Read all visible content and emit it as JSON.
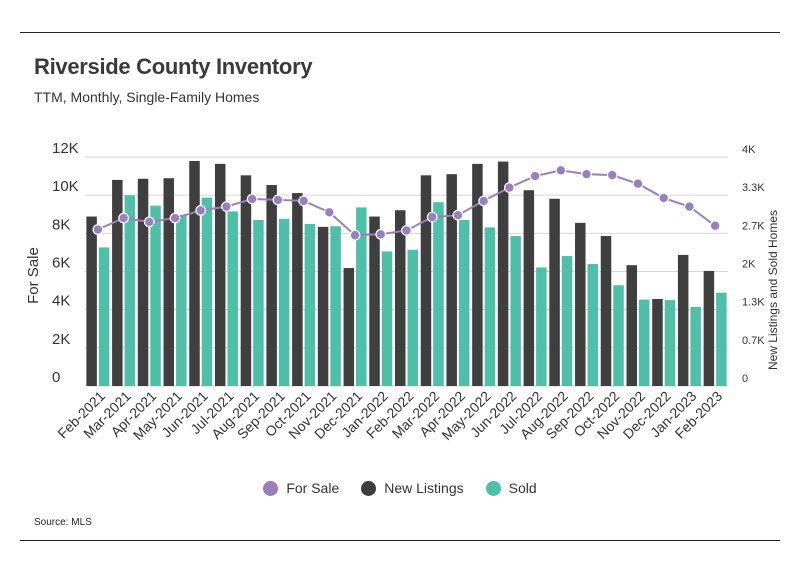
{
  "title": "Riverside County Inventory",
  "subtitle": "TTM, Monthly, Single-Family Homes",
  "source": "Source: MLS",
  "colors": {
    "for_sale": "#9a7fbf",
    "new_listings": "#3f3f3f",
    "sold": "#4fbfa8"
  },
  "chart_data": {
    "type": "bar",
    "categories": [
      "Feb-2021",
      "Mar-2021",
      "Apr-2021",
      "May-2021",
      "Jun-2021",
      "Jul-2021",
      "Aug-2021",
      "Sep-2021",
      "Oct-2021",
      "Nov-2021",
      "Dec-2021",
      "Jan-2022",
      "Feb-2022",
      "Mar-2022",
      "Apr-2022",
      "May-2022",
      "Jun-2022",
      "Jul-2022",
      "Aug-2022",
      "Sep-2022",
      "Oct-2022",
      "Nov-2022",
      "Dec-2022",
      "Jan-2023",
      "Feb-2023"
    ],
    "ylabel_left": "For Sale",
    "ylabel_right": "New Listings and Sold Homes",
    "ylim_left": [
      0,
      12000
    ],
    "ylim_right": [
      0,
      4000
    ],
    "left_ticks": [
      0,
      2000,
      4000,
      6000,
      8000,
      10000,
      12000
    ],
    "left_tick_labels": [
      "0",
      "2K",
      "4K",
      "6K",
      "8K",
      "10K",
      "12K"
    ],
    "right_ticks": [
      0,
      667,
      1333,
      2000,
      2667,
      3333,
      4000
    ],
    "right_tick_labels": [
      "0",
      "0.7K",
      "1.3K",
      "2K",
      "2.7K",
      "3.3K",
      "4K"
    ],
    "legend_position": "bottom",
    "grid": true,
    "series": [
      {
        "name": "For Sale",
        "kind": "line",
        "axis": "left",
        "values": [
          8200,
          8800,
          8600,
          8800,
          9200,
          9400,
          9800,
          9750,
          9700,
          9100,
          7900,
          7950,
          8150,
          8850,
          8950,
          9700,
          10400,
          11000,
          11300,
          11100,
          11050,
          10600,
          9850,
          9400,
          8400
        ]
      },
      {
        "name": "New Listings",
        "kind": "bar",
        "axis": "right",
        "values": [
          2960,
          3600,
          3620,
          3630,
          3930,
          3880,
          3680,
          3510,
          3370,
          2780,
          2060,
          2960,
          3070,
          3680,
          3700,
          3880,
          3920,
          3420,
          3270,
          2850,
          2620,
          2110,
          1520,
          2290,
          2010
        ]
      },
      {
        "name": "Sold",
        "kind": "bar",
        "axis": "right",
        "values": [
          2420,
          3330,
          3150,
          2990,
          3290,
          3050,
          2900,
          2920,
          2830,
          2790,
          3120,
          2350,
          2380,
          3210,
          2900,
          2770,
          2620,
          2070,
          2270,
          2130,
          1760,
          1510,
          1500,
          1380,
          1630
        ]
      }
    ]
  }
}
